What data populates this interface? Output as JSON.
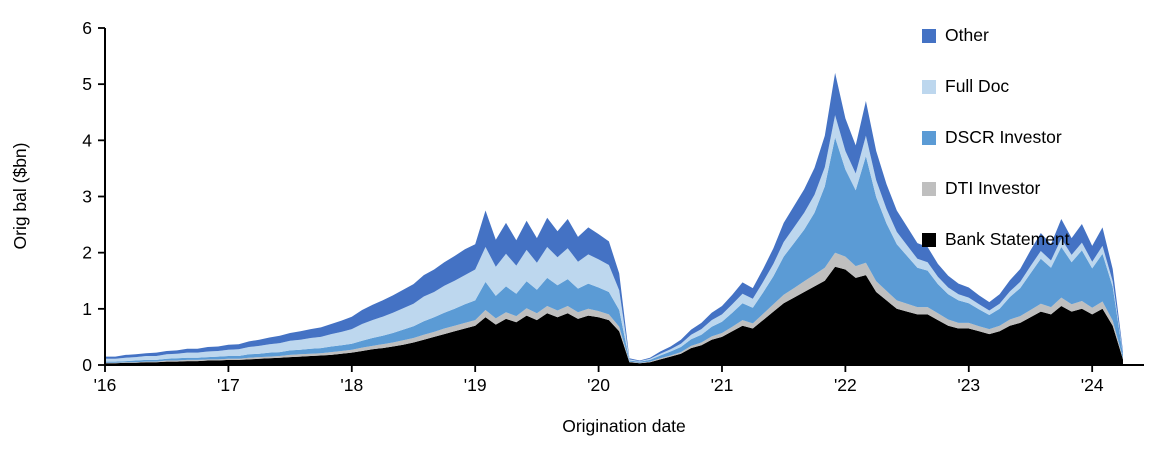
{
  "chart_data": {
    "type": "area",
    "stacked": true,
    "title": "",
    "xlabel": "Origination date",
    "ylabel": "Orig bal ($bn)",
    "xlim": [
      2016.0,
      2024.42
    ],
    "ylim": [
      0,
      6
    ],
    "x_start_year": 2016,
    "x_start_month": 1,
    "n_months": 100,
    "x_step": "monthly",
    "xtick_years": [
      2016,
      2017,
      2018,
      2019,
      2020,
      2021,
      2022,
      2023,
      2024
    ],
    "xtick_labels": [
      "'16",
      "'17",
      "'18",
      "'19",
      "'20",
      "'21",
      "'22",
      "'23",
      "'24"
    ],
    "ytick_values": [
      0,
      1,
      2,
      3,
      4,
      5,
      6
    ],
    "ytick_labels": [
      "0",
      "1",
      "2",
      "3",
      "4",
      "5",
      "6"
    ],
    "grid": false,
    "legend_position": "top-right",
    "series": [
      {
        "name": "Bank Statement",
        "color": "#000000",
        "values": [
          0.03,
          0.03,
          0.04,
          0.04,
          0.05,
          0.05,
          0.06,
          0.06,
          0.07,
          0.07,
          0.08,
          0.08,
          0.09,
          0.09,
          0.1,
          0.11,
          0.12,
          0.13,
          0.14,
          0.15,
          0.16,
          0.17,
          0.18,
          0.2,
          0.22,
          0.25,
          0.28,
          0.3,
          0.33,
          0.36,
          0.4,
          0.45,
          0.5,
          0.55,
          0.6,
          0.65,
          0.7,
          0.85,
          0.72,
          0.82,
          0.76,
          0.88,
          0.8,
          0.92,
          0.85,
          0.92,
          0.82,
          0.88,
          0.85,
          0.8,
          0.6,
          0.05,
          0.03,
          0.05,
          0.1,
          0.15,
          0.2,
          0.3,
          0.35,
          0.45,
          0.5,
          0.6,
          0.7,
          0.65,
          0.8,
          0.95,
          1.1,
          1.2,
          1.3,
          1.4,
          1.5,
          1.75,
          1.7,
          1.55,
          1.6,
          1.3,
          1.15,
          1.0,
          0.95,
          0.9,
          0.9,
          0.8,
          0.7,
          0.65,
          0.65,
          0.6,
          0.55,
          0.6,
          0.7,
          0.75,
          0.85,
          0.95,
          0.9,
          1.05,
          0.95,
          1.0,
          0.9,
          1.0,
          0.7,
          0.1
        ]
      },
      {
        "name": "DTI Investor",
        "color": "#bfbfbf",
        "values": [
          0.01,
          0.01,
          0.01,
          0.01,
          0.01,
          0.01,
          0.02,
          0.02,
          0.02,
          0.02,
          0.02,
          0.02,
          0.02,
          0.02,
          0.03,
          0.03,
          0.03,
          0.03,
          0.04,
          0.04,
          0.04,
          0.04,
          0.05,
          0.05,
          0.05,
          0.06,
          0.06,
          0.07,
          0.07,
          0.08,
          0.08,
          0.09,
          0.09,
          0.1,
          0.1,
          0.1,
          0.1,
          0.13,
          0.11,
          0.12,
          0.11,
          0.13,
          0.12,
          0.13,
          0.12,
          0.13,
          0.12,
          0.12,
          0.11,
          0.1,
          0.08,
          0.01,
          0.01,
          0.01,
          0.02,
          0.02,
          0.03,
          0.04,
          0.05,
          0.06,
          0.07,
          0.08,
          0.1,
          0.09,
          0.11,
          0.13,
          0.15,
          0.17,
          0.19,
          0.21,
          0.23,
          0.25,
          0.23,
          0.21,
          0.22,
          0.19,
          0.17,
          0.15,
          0.14,
          0.13,
          0.13,
          0.12,
          0.11,
          0.1,
          0.1,
          0.09,
          0.09,
          0.1,
          0.11,
          0.12,
          0.13,
          0.14,
          0.13,
          0.15,
          0.13,
          0.14,
          0.12,
          0.13,
          0.09,
          0.02
        ]
      },
      {
        "name": "DSCR Investor",
        "color": "#5b9bd5",
        "values": [
          0.02,
          0.02,
          0.02,
          0.03,
          0.03,
          0.03,
          0.03,
          0.04,
          0.04,
          0.04,
          0.04,
          0.05,
          0.05,
          0.05,
          0.06,
          0.06,
          0.07,
          0.07,
          0.08,
          0.08,
          0.09,
          0.09,
          0.1,
          0.1,
          0.11,
          0.12,
          0.14,
          0.15,
          0.17,
          0.19,
          0.21,
          0.24,
          0.26,
          0.28,
          0.3,
          0.33,
          0.35,
          0.5,
          0.4,
          0.46,
          0.4,
          0.48,
          0.42,
          0.5,
          0.45,
          0.48,
          0.42,
          0.45,
          0.42,
          0.4,
          0.3,
          0.02,
          0.02,
          0.03,
          0.05,
          0.07,
          0.09,
          0.12,
          0.14,
          0.17,
          0.2,
          0.25,
          0.3,
          0.28,
          0.38,
          0.5,
          0.68,
          0.8,
          0.92,
          1.1,
          1.45,
          2.05,
          1.55,
          1.35,
          1.9,
          1.5,
          1.2,
          1.0,
          0.85,
          0.7,
          0.65,
          0.52,
          0.45,
          0.4,
          0.35,
          0.3,
          0.25,
          0.3,
          0.4,
          0.5,
          0.65,
          0.8,
          0.7,
          0.9,
          0.75,
          0.9,
          0.7,
          0.85,
          0.6,
          0.06
        ]
      },
      {
        "name": "Full Doc",
        "color": "#bdd7ee",
        "values": [
          0.05,
          0.05,
          0.06,
          0.06,
          0.07,
          0.07,
          0.08,
          0.08,
          0.09,
          0.09,
          0.1,
          0.1,
          0.11,
          0.12,
          0.13,
          0.14,
          0.15,
          0.16,
          0.17,
          0.18,
          0.19,
          0.2,
          0.22,
          0.24,
          0.26,
          0.3,
          0.32,
          0.34,
          0.36,
          0.38,
          0.4,
          0.44,
          0.45,
          0.48,
          0.5,
          0.52,
          0.55,
          0.62,
          0.52,
          0.58,
          0.5,
          0.56,
          0.48,
          0.55,
          0.5,
          0.55,
          0.48,
          0.52,
          0.5,
          0.48,
          0.35,
          0.02,
          0.01,
          0.02,
          0.03,
          0.04,
          0.06,
          0.08,
          0.1,
          0.12,
          0.13,
          0.15,
          0.17,
          0.16,
          0.19,
          0.22,
          0.26,
          0.28,
          0.3,
          0.32,
          0.34,
          0.4,
          0.33,
          0.3,
          0.36,
          0.3,
          0.26,
          0.22,
          0.19,
          0.16,
          0.15,
          0.13,
          0.12,
          0.11,
          0.1,
          0.09,
          0.08,
          0.09,
          0.1,
          0.11,
          0.13,
          0.14,
          0.13,
          0.15,
          0.13,
          0.14,
          0.12,
          0.14,
          0.1,
          0.02
        ]
      },
      {
        "name": "Other",
        "color": "#4472c4",
        "values": [
          0.04,
          0.04,
          0.05,
          0.05,
          0.05,
          0.06,
          0.06,
          0.06,
          0.07,
          0.07,
          0.08,
          0.08,
          0.09,
          0.09,
          0.1,
          0.11,
          0.12,
          0.13,
          0.14,
          0.15,
          0.16,
          0.17,
          0.18,
          0.2,
          0.22,
          0.25,
          0.27,
          0.29,
          0.31,
          0.33,
          0.35,
          0.38,
          0.4,
          0.42,
          0.44,
          0.46,
          0.45,
          0.65,
          0.48,
          0.55,
          0.45,
          0.52,
          0.44,
          0.52,
          0.46,
          0.52,
          0.44,
          0.48,
          0.45,
          0.42,
          0.3,
          0.02,
          0.01,
          0.02,
          0.04,
          0.05,
          0.07,
          0.09,
          0.11,
          0.13,
          0.15,
          0.17,
          0.2,
          0.19,
          0.23,
          0.28,
          0.34,
          0.38,
          0.42,
          0.48,
          0.56,
          0.75,
          0.58,
          0.5,
          0.62,
          0.52,
          0.44,
          0.38,
          0.33,
          0.28,
          0.27,
          0.23,
          0.21,
          0.19,
          0.18,
          0.16,
          0.15,
          0.17,
          0.2,
          0.23,
          0.28,
          0.32,
          0.29,
          0.35,
          0.3,
          0.33,
          0.28,
          0.33,
          0.22,
          0.04
        ]
      }
    ],
    "legend": [
      {
        "label": "Other",
        "color": "#4472c4"
      },
      {
        "label": "Full Doc",
        "color": "#bdd7ee"
      },
      {
        "label": "DSCR Investor",
        "color": "#5b9bd5"
      },
      {
        "label": "DTI Investor",
        "color": "#bfbfbf"
      },
      {
        "label": "Bank Statement",
        "color": "#000000"
      }
    ]
  }
}
